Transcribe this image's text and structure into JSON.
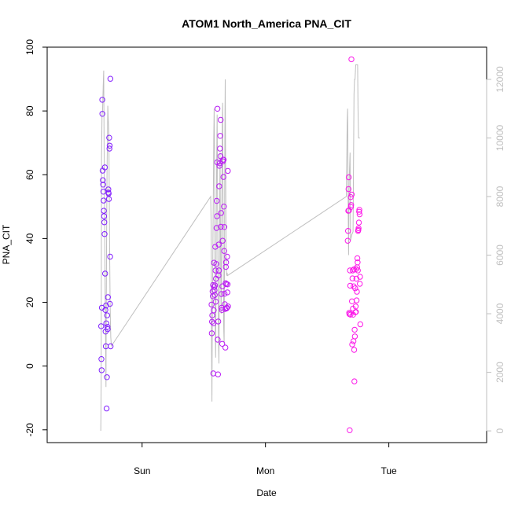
{
  "chart_data": {
    "type": "scatter",
    "title": "ATOM1 North_America PNA_CIT",
    "xlabel": "Date",
    "ylabel": "PNA_CIT",
    "xlim": [
      -0.7695,
      2.7928
    ],
    "ylim": [
      -24,
      100
    ],
    "x_ticks": [
      {
        "value": 0,
        "label": "Sun"
      },
      {
        "value": 1,
        "label": "Mon"
      },
      {
        "value": 2,
        "label": "Tue"
      }
    ],
    "y_ticks": [
      -20,
      0,
      20,
      40,
      60,
      80,
      100
    ],
    "y2_ticks": [
      0,
      2000,
      4000,
      6000,
      8000,
      10000,
      12000
    ],
    "y2lim": [
      -400,
      13100
    ],
    "grid": false,
    "colors": {
      "points_start": "#7f1fff",
      "points_end": "#ff19e8",
      "secondary_line": "#bfbfbf",
      "axis": "#000000",
      "secondary_axis": "#bfbfbf"
    },
    "series": [
      {
        "type": "points",
        "points": [
          {
            "x": -0.332,
            "y": 12.5
          },
          {
            "x": -0.33,
            "y": 2.2
          },
          {
            "x": -0.328,
            "y": -1.3
          },
          {
            "x": -0.326,
            "y": 18.3
          },
          {
            "x": -0.323,
            "y": 83.5
          },
          {
            "x": -0.322,
            "y": 79.1
          },
          {
            "x": -0.32,
            "y": 61.3
          },
          {
            "x": -0.318,
            "y": 58.3
          },
          {
            "x": -0.316,
            "y": 56.9
          },
          {
            "x": -0.314,
            "y": 54.7
          },
          {
            "x": -0.312,
            "y": 51.9
          },
          {
            "x": -0.31,
            "y": 48.7
          },
          {
            "x": -0.308,
            "y": 47.0
          },
          {
            "x": -0.306,
            "y": 45.1
          },
          {
            "x": -0.304,
            "y": 41.4
          },
          {
            "x": -0.302,
            "y": 62.3
          },
          {
            "x": -0.3,
            "y": 29.0
          },
          {
            "x": -0.298,
            "y": 17.6
          },
          {
            "x": -0.296,
            "y": 10.8
          },
          {
            "x": -0.294,
            "y": 6.2
          },
          {
            "x": -0.292,
            "y": 19.0
          },
          {
            "x": -0.29,
            "y": 13.4
          },
          {
            "x": -0.288,
            "y": -13.3
          },
          {
            "x": -0.285,
            "y": -3.5
          },
          {
            "x": -0.283,
            "y": 15.9
          },
          {
            "x": -0.281,
            "y": 12.3
          },
          {
            "x": -0.279,
            "y": 11.6
          },
          {
            "x": -0.277,
            "y": 21.6
          },
          {
            "x": -0.274,
            "y": 55.4
          },
          {
            "x": -0.273,
            "y": 54.4
          },
          {
            "x": -0.271,
            "y": 54.1
          },
          {
            "x": -0.269,
            "y": 52.4
          },
          {
            "x": -0.267,
            "y": 71.6
          },
          {
            "x": -0.265,
            "y": 68.2
          },
          {
            "x": -0.263,
            "y": 69.1
          },
          {
            "x": -0.261,
            "y": 19.5
          },
          {
            "x": -0.259,
            "y": 34.3
          },
          {
            "x": -0.257,
            "y": 90.1
          },
          {
            "x": -0.255,
            "y": 6.2
          },
          {
            "x": 0.563,
            "y": 19.3
          },
          {
            "x": 0.565,
            "y": 10.3
          },
          {
            "x": 0.567,
            "y": 13.9
          },
          {
            "x": 0.569,
            "y": 15.9
          },
          {
            "x": 0.571,
            "y": 23.4
          },
          {
            "x": 0.573,
            "y": 21.9
          },
          {
            "x": 0.575,
            "y": 25.4
          },
          {
            "x": 0.577,
            "y": -2.3
          },
          {
            "x": 0.579,
            "y": 13.4
          },
          {
            "x": 0.581,
            "y": 17.5
          },
          {
            "x": 0.583,
            "y": 32.4
          },
          {
            "x": 0.585,
            "y": 24.8
          },
          {
            "x": 0.587,
            "y": 23.8
          },
          {
            "x": 0.589,
            "y": 22.3
          },
          {
            "x": 0.591,
            "y": 25.3
          },
          {
            "x": 0.593,
            "y": 37.4
          },
          {
            "x": 0.595,
            "y": 30.0
          },
          {
            "x": 0.597,
            "y": 20.2
          },
          {
            "x": 0.599,
            "y": 27.4
          },
          {
            "x": 0.601,
            "y": 32.0
          },
          {
            "x": 0.603,
            "y": 43.3
          },
          {
            "x": 0.605,
            "y": 51.8
          },
          {
            "x": 0.607,
            "y": 47.0
          },
          {
            "x": 0.609,
            "y": 63.9
          },
          {
            "x": 0.611,
            "y": 80.7
          },
          {
            "x": 0.613,
            "y": 8.3
          },
          {
            "x": 0.615,
            "y": -2.6
          },
          {
            "x": 0.617,
            "y": 14.0
          },
          {
            "x": 0.619,
            "y": 28.4
          },
          {
            "x": 0.621,
            "y": 38.1
          },
          {
            "x": 0.623,
            "y": 30.0
          },
          {
            "x": 0.625,
            "y": 56.4
          },
          {
            "x": 0.627,
            "y": 62.8
          },
          {
            "x": 0.629,
            "y": 63.6
          },
          {
            "x": 0.631,
            "y": 68.2
          },
          {
            "x": 0.633,
            "y": 72.2
          },
          {
            "x": 0.635,
            "y": 65.8
          },
          {
            "x": 0.637,
            "y": 77.2
          },
          {
            "x": 0.639,
            "y": 43.7
          },
          {
            "x": 0.641,
            "y": 48.0
          },
          {
            "x": 0.643,
            "y": 22.6
          },
          {
            "x": 0.645,
            "y": 18.3
          },
          {
            "x": 0.647,
            "y": 17.6
          },
          {
            "x": 0.649,
            "y": 7.0
          },
          {
            "x": 0.651,
            "y": 25.0
          },
          {
            "x": 0.653,
            "y": 39.3
          },
          {
            "x": 0.655,
            "y": 64.2
          },
          {
            "x": 0.657,
            "y": 64.7
          },
          {
            "x": 0.659,
            "y": 59.3
          },
          {
            "x": 0.661,
            "y": 64.7
          },
          {
            "x": 0.663,
            "y": 50.0
          },
          {
            "x": 0.665,
            "y": 36.1
          },
          {
            "x": 0.667,
            "y": 43.6
          },
          {
            "x": 0.669,
            "y": 22.7
          },
          {
            "x": 0.671,
            "y": 19.4
          },
          {
            "x": 0.673,
            "y": 17.9
          },
          {
            "x": 0.675,
            "y": 5.8
          },
          {
            "x": 0.677,
            "y": 26.0
          },
          {
            "x": 0.679,
            "y": 31.1
          },
          {
            "x": 0.681,
            "y": 32.5
          },
          {
            "x": 0.683,
            "y": 25.7
          },
          {
            "x": 0.685,
            "y": 18.1
          },
          {
            "x": 0.687,
            "y": 18.3
          },
          {
            "x": 0.689,
            "y": 34.3
          },
          {
            "x": 0.691,
            "y": 23.1
          },
          {
            "x": 0.693,
            "y": 25.6
          },
          {
            "x": 0.695,
            "y": 61.2
          },
          {
            "x": 0.697,
            "y": 18.7
          },
          {
            "x": 1.667,
            "y": 39.3
          },
          {
            "x": 1.669,
            "y": 42.4
          },
          {
            "x": 1.671,
            "y": 48.7
          },
          {
            "x": 1.673,
            "y": 55.5
          },
          {
            "x": 1.675,
            "y": 59.2
          },
          {
            "x": 1.677,
            "y": 48.8
          },
          {
            "x": 1.679,
            "y": 16.7
          },
          {
            "x": 1.681,
            "y": 16.3
          },
          {
            "x": 1.683,
            "y": -20.1
          },
          {
            "x": 1.685,
            "y": 30.0
          },
          {
            "x": 1.687,
            "y": 25.2
          },
          {
            "x": 1.689,
            "y": 16.1
          },
          {
            "x": 1.691,
            "y": 53.0
          },
          {
            "x": 1.693,
            "y": 49.9
          },
          {
            "x": 1.695,
            "y": 50.5
          },
          {
            "x": 1.697,
            "y": 96.2
          },
          {
            "x": 1.699,
            "y": 53.8
          },
          {
            "x": 1.701,
            "y": 20.3
          },
          {
            "x": 1.703,
            "y": 6.8
          },
          {
            "x": 1.705,
            "y": 27.5
          },
          {
            "x": 1.707,
            "y": 30.0
          },
          {
            "x": 1.709,
            "y": 18.0
          },
          {
            "x": 1.711,
            "y": 16.1
          },
          {
            "x": 1.713,
            "y": 7.8
          },
          {
            "x": 1.715,
            "y": 25.0
          },
          {
            "x": 1.717,
            "y": 30.3
          },
          {
            "x": 1.719,
            "y": 5.1
          },
          {
            "x": 1.721,
            "y": -4.8
          },
          {
            "x": 1.723,
            "y": 11.4
          },
          {
            "x": 1.725,
            "y": 9.3
          },
          {
            "x": 1.727,
            "y": 24.4
          },
          {
            "x": 1.729,
            "y": 16.9
          },
          {
            "x": 1.731,
            "y": 18.7
          },
          {
            "x": 1.733,
            "y": 17.0
          },
          {
            "x": 1.735,
            "y": 30.4
          },
          {
            "x": 1.737,
            "y": 27.4
          },
          {
            "x": 1.739,
            "y": 20.6
          },
          {
            "x": 1.741,
            "y": 23.3
          },
          {
            "x": 1.743,
            "y": 31.0
          },
          {
            "x": 1.745,
            "y": 33.8
          },
          {
            "x": 1.747,
            "y": 32.5
          },
          {
            "x": 1.749,
            "y": 30.0
          },
          {
            "x": 1.751,
            "y": 42.4
          },
          {
            "x": 1.753,
            "y": 42.7
          },
          {
            "x": 1.755,
            "y": 43.2
          },
          {
            "x": 1.757,
            "y": 45.0
          },
          {
            "x": 1.759,
            "y": 48.4
          },
          {
            "x": 1.761,
            "y": 49.0
          },
          {
            "x": 1.763,
            "y": 47.6
          },
          {
            "x": 1.765,
            "y": 25.8
          },
          {
            "x": 1.767,
            "y": 28.0
          },
          {
            "x": 1.769,
            "y": 13.1
          }
        ]
      },
      {
        "type": "line",
        "axis": "right",
        "points": [
          {
            "x": -0.335,
            "y": 0
          },
          {
            "x": -0.332,
            "y": 1600
          },
          {
            "x": -0.329,
            "y": 9200
          },
          {
            "x": -0.325,
            "y": 10800
          },
          {
            "x": -0.321,
            "y": 10900
          },
          {
            "x": -0.317,
            "y": 11500
          },
          {
            "x": -0.314,
            "y": 12000
          },
          {
            "x": -0.311,
            "y": 12300
          },
          {
            "x": -0.308,
            "y": 9800
          },
          {
            "x": -0.305,
            "y": 8000
          },
          {
            "x": -0.302,
            "y": 6000
          },
          {
            "x": -0.299,
            "y": 4500
          },
          {
            "x": -0.296,
            "y": 3200
          },
          {
            "x": -0.293,
            "y": 1500
          },
          {
            "x": -0.29,
            "y": 4500
          },
          {
            "x": -0.287,
            "y": 7000
          },
          {
            "x": -0.284,
            "y": 9000
          },
          {
            "x": -0.281,
            "y": 10000
          },
          {
            "x": -0.278,
            "y": 11100
          },
          {
            "x": -0.275,
            "y": 10700
          },
          {
            "x": -0.272,
            "y": 10400
          },
          {
            "x": -0.269,
            "y": 10100
          },
          {
            "x": -0.266,
            "y": 8000
          },
          {
            "x": -0.263,
            "y": 6000
          },
          {
            "x": -0.26,
            "y": 4500
          },
          {
            "x": -0.257,
            "y": 3800
          },
          {
            "x": -0.254,
            "y": 3200
          },
          {
            "x": -0.251,
            "y": 3000
          },
          {
            "x": -0.248,
            "y": 2900
          },
          {
            "x": 0.556,
            "y": 8000
          },
          {
            "x": 0.56,
            "y": 7000
          },
          {
            "x": 0.563,
            "y": 2800
          },
          {
            "x": 0.566,
            "y": 1000
          },
          {
            "x": 0.569,
            "y": 3500
          },
          {
            "x": 0.572,
            "y": 5000
          },
          {
            "x": 0.575,
            "y": 7000
          },
          {
            "x": 0.578,
            "y": 8500
          },
          {
            "x": 0.581,
            "y": 10000
          },
          {
            "x": 0.584,
            "y": 11000
          },
          {
            "x": 0.587,
            "y": 9500
          },
          {
            "x": 0.59,
            "y": 6000
          },
          {
            "x": 0.593,
            "y": 3500
          },
          {
            "x": 0.596,
            "y": 2500
          },
          {
            "x": 0.599,
            "y": 4500
          },
          {
            "x": 0.602,
            "y": 7500
          },
          {
            "x": 0.605,
            "y": 9500
          },
          {
            "x": 0.608,
            "y": 10800
          },
          {
            "x": 0.611,
            "y": 9000
          },
          {
            "x": 0.614,
            "y": 6000
          },
          {
            "x": 0.617,
            "y": 4000
          },
          {
            "x": 0.62,
            "y": 3000
          },
          {
            "x": 0.623,
            "y": 2300
          },
          {
            "x": 0.626,
            "y": 5000
          },
          {
            "x": 0.629,
            "y": 8000
          },
          {
            "x": 0.632,
            "y": 9500
          },
          {
            "x": 0.635,
            "y": 7000
          },
          {
            "x": 0.638,
            "y": 5000
          },
          {
            "x": 0.641,
            "y": 4000
          },
          {
            "x": 0.644,
            "y": 6000
          },
          {
            "x": 0.647,
            "y": 8500
          },
          {
            "x": 0.65,
            "y": 10500
          },
          {
            "x": 0.653,
            "y": 11200
          },
          {
            "x": 0.656,
            "y": 8000
          },
          {
            "x": 0.659,
            "y": 5000
          },
          {
            "x": 0.662,
            "y": 3500
          },
          {
            "x": 0.665,
            "y": 3000
          },
          {
            "x": 0.668,
            "y": 6000
          },
          {
            "x": 0.671,
            "y": 10000
          },
          {
            "x": 0.674,
            "y": 12000
          },
          {
            "x": 0.677,
            "y": 9000
          },
          {
            "x": 0.68,
            "y": 6500
          },
          {
            "x": 0.683,
            "y": 5500
          },
          {
            "x": 0.686,
            "y": 5300
          },
          {
            "x": 0.689,
            "y": 5400
          },
          {
            "x": 0.692,
            "y": 5300
          },
          {
            "x": 1.655,
            "y": 8000
          },
          {
            "x": 1.658,
            "y": 9000
          },
          {
            "x": 1.662,
            "y": 10500
          },
          {
            "x": 1.666,
            "y": 11000
          },
          {
            "x": 1.67,
            "y": 8000
          },
          {
            "x": 1.674,
            "y": 6000
          },
          {
            "x": 1.678,
            "y": 8500
          },
          {
            "x": 1.682,
            "y": 9000
          },
          {
            "x": 1.686,
            "y": 9500
          },
          {
            "x": 1.69,
            "y": 6500
          },
          {
            "x": 1.7,
            "y": 6700
          },
          {
            "x": 1.71,
            "y": 6800
          },
          {
            "x": 1.718,
            "y": 11500
          },
          {
            "x": 1.722,
            "y": 12000
          },
          {
            "x": 1.726,
            "y": 12000
          },
          {
            "x": 1.732,
            "y": 12500
          },
          {
            "x": 1.74,
            "y": 12500
          },
          {
            "x": 1.747,
            "y": 12500
          },
          {
            "x": 1.75,
            "y": 11000
          },
          {
            "x": 1.755,
            "y": 10000
          },
          {
            "x": 1.76,
            "y": 10000
          },
          {
            "x": 1.765,
            "y": 10000
          }
        ]
      }
    ]
  }
}
